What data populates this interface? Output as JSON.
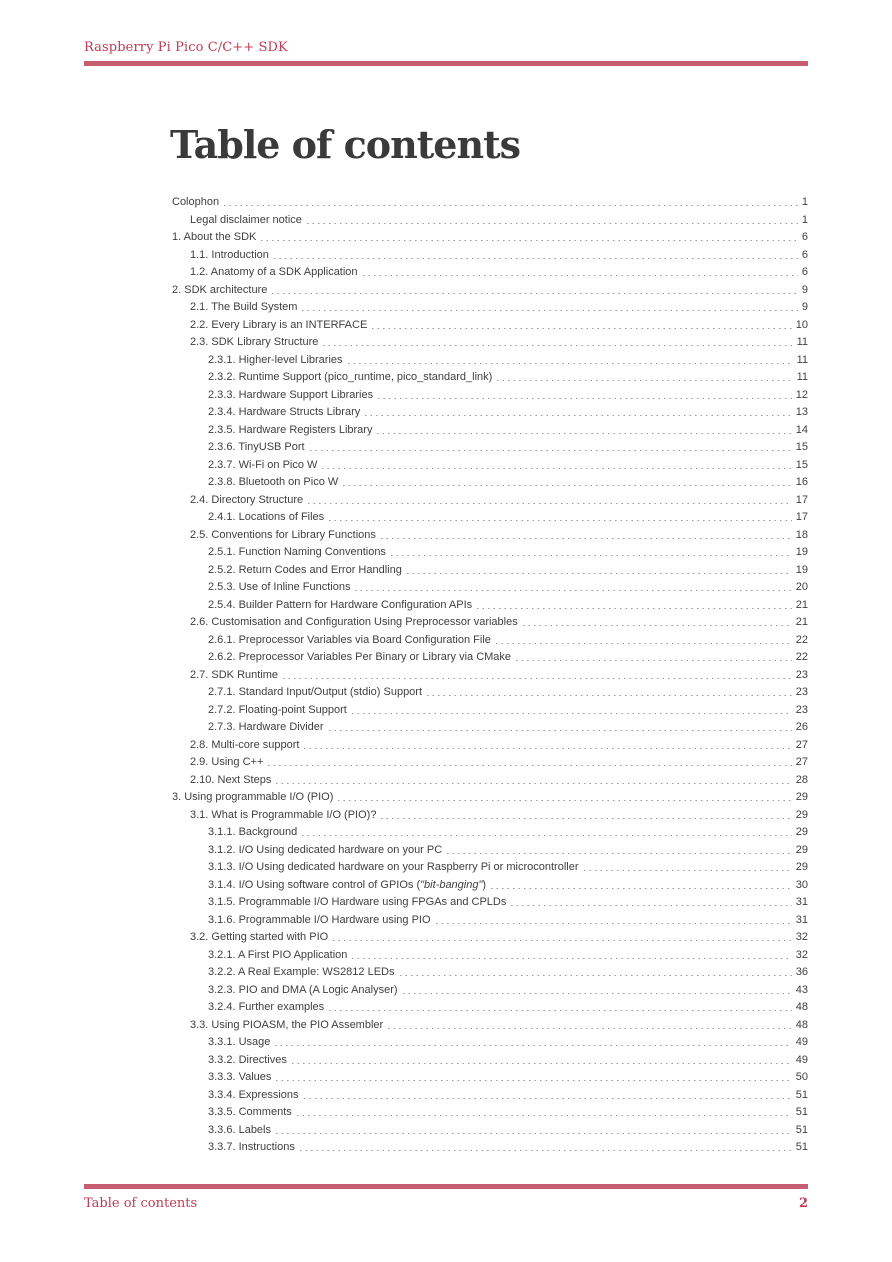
{
  "colors": {
    "accent": "#c13a52",
    "bar": "#c75d70",
    "text": "#3f3f3f",
    "dots": "#9a9a9a"
  },
  "header": {
    "brand": "Raspberry Pi Pico C/C++ SDK"
  },
  "main_title": "Table of contents",
  "footer": {
    "section": "Table of contents",
    "page_number": "2"
  },
  "toc": {
    "entries": [
      {
        "level": 0,
        "label": "Colophon",
        "page": "1"
      },
      {
        "level": 1,
        "label": "Legal disclaimer notice",
        "page": "1"
      },
      {
        "level": 0,
        "label": "1. About the SDK",
        "page": "6"
      },
      {
        "level": 1,
        "label": "1.1. Introduction",
        "page": "6"
      },
      {
        "level": 1,
        "label": "1.2. Anatomy of a SDK Application",
        "page": "6"
      },
      {
        "level": 0,
        "label": "2. SDK architecture",
        "page": "9"
      },
      {
        "level": 1,
        "label": "2.1. The Build System",
        "page": "9"
      },
      {
        "level": 1,
        "label": "2.2. Every Library is an INTERFACE",
        "page": "10"
      },
      {
        "level": 1,
        "label": "2.3. SDK Library Structure",
        "page": "11"
      },
      {
        "level": 2,
        "label": "2.3.1. Higher-level Libraries",
        "page": "11"
      },
      {
        "level": 2,
        "label": "2.3.2. Runtime Support (pico_runtime, pico_standard_link)",
        "page": "11"
      },
      {
        "level": 2,
        "label": "2.3.3. Hardware Support Libraries",
        "page": "12"
      },
      {
        "level": 2,
        "label": "2.3.4. Hardware Structs Library",
        "page": "13"
      },
      {
        "level": 2,
        "label": "2.3.5. Hardware Registers Library",
        "page": "14"
      },
      {
        "level": 2,
        "label": "2.3.6. TinyUSB Port",
        "page": "15"
      },
      {
        "level": 2,
        "label": "2.3.7. Wi-Fi on Pico W",
        "page": "15"
      },
      {
        "level": 2,
        "label": "2.3.8. Bluetooth on Pico W",
        "page": "16"
      },
      {
        "level": 1,
        "label": "2.4. Directory Structure",
        "page": "17"
      },
      {
        "level": 2,
        "label": "2.4.1. Locations of Files",
        "page": "17"
      },
      {
        "level": 1,
        "label": "2.5. Conventions for Library Functions",
        "page": "18"
      },
      {
        "level": 2,
        "label": "2.5.1. Function Naming Conventions",
        "page": "19"
      },
      {
        "level": 2,
        "label": "2.5.2. Return Codes and Error Handling",
        "page": "19"
      },
      {
        "level": 2,
        "label": "2.5.3. Use of Inline Functions",
        "page": "20"
      },
      {
        "level": 2,
        "label": "2.5.4. Builder Pattern for Hardware Configuration APIs",
        "page": "21"
      },
      {
        "level": 1,
        "label": "2.6. Customisation and Configuration Using Preprocessor variables",
        "page": "21"
      },
      {
        "level": 2,
        "label": "2.6.1. Preprocessor Variables via Board Configuration File",
        "page": "22"
      },
      {
        "level": 2,
        "label": "2.6.2. Preprocessor Variables Per Binary or Library via CMake",
        "page": "22"
      },
      {
        "level": 1,
        "label": "2.7. SDK Runtime",
        "page": "23"
      },
      {
        "level": 2,
        "label": "2.7.1. Standard Input/Output (stdio) Support",
        "page": "23"
      },
      {
        "level": 2,
        "label": "2.7.2. Floating-point Support",
        "page": "23"
      },
      {
        "level": 2,
        "label": "2.7.3. Hardware Divider",
        "page": "26"
      },
      {
        "level": 1,
        "label": "2.8. Multi-core support",
        "page": "27"
      },
      {
        "level": 1,
        "label": "2.9. Using C++",
        "page": "27"
      },
      {
        "level": 1,
        "label": "2.10. Next Steps",
        "page": "28"
      },
      {
        "level": 0,
        "label": "3. Using programmable I/O (PIO)",
        "page": "29"
      },
      {
        "level": 1,
        "label": "3.1. What is Programmable I/O (PIO)?",
        "page": "29"
      },
      {
        "level": 2,
        "label": "3.1.1. Background",
        "page": "29"
      },
      {
        "level": 2,
        "label": "3.1.2. I/O Using dedicated hardware on your PC",
        "page": "29"
      },
      {
        "level": 2,
        "label": "3.1.3. I/O Using dedicated hardware on your Raspberry Pi or microcontroller",
        "page": "29"
      },
      {
        "level": 2,
        "label": "3.1.4. I/O Using software control of GPIOs (\"bit-banging\")",
        "page": "30",
        "parts": [
          {
            "text": "3.1.4. I/O Using software control of GPIOs (",
            "italic": false
          },
          {
            "text": "\"bit-banging\"",
            "italic": true
          },
          {
            "text": ")",
            "italic": false
          }
        ]
      },
      {
        "level": 2,
        "label": "3.1.5. Programmable I/O Hardware using FPGAs and CPLDs",
        "page": "31"
      },
      {
        "level": 2,
        "label": "3.1.6. Programmable I/O Hardware using PIO",
        "page": "31"
      },
      {
        "level": 1,
        "label": "3.2. Getting started with PIO",
        "page": "32"
      },
      {
        "level": 2,
        "label": "3.2.1. A First PIO Application",
        "page": "32"
      },
      {
        "level": 2,
        "label": "3.2.2. A Real Example: WS2812 LEDs",
        "page": "36"
      },
      {
        "level": 2,
        "label": "3.2.3. PIO and DMA (A Logic Analyser)",
        "page": "43"
      },
      {
        "level": 2,
        "label": "3.2.4. Further examples",
        "page": "48"
      },
      {
        "level": 1,
        "label": "3.3. Using PIOASM, the PIO Assembler",
        "page": "48"
      },
      {
        "level": 2,
        "label": "3.3.1. Usage",
        "page": "49"
      },
      {
        "level": 2,
        "label": "3.3.2. Directives",
        "page": "49"
      },
      {
        "level": 2,
        "label": "3.3.3. Values",
        "page": "50"
      },
      {
        "level": 2,
        "label": "3.3.4. Expressions",
        "page": "51"
      },
      {
        "level": 2,
        "label": "3.3.5. Comments",
        "page": "51"
      },
      {
        "level": 2,
        "label": "3.3.6. Labels",
        "page": "51"
      },
      {
        "level": 2,
        "label": "3.3.7. Instructions",
        "page": "51"
      }
    ]
  }
}
